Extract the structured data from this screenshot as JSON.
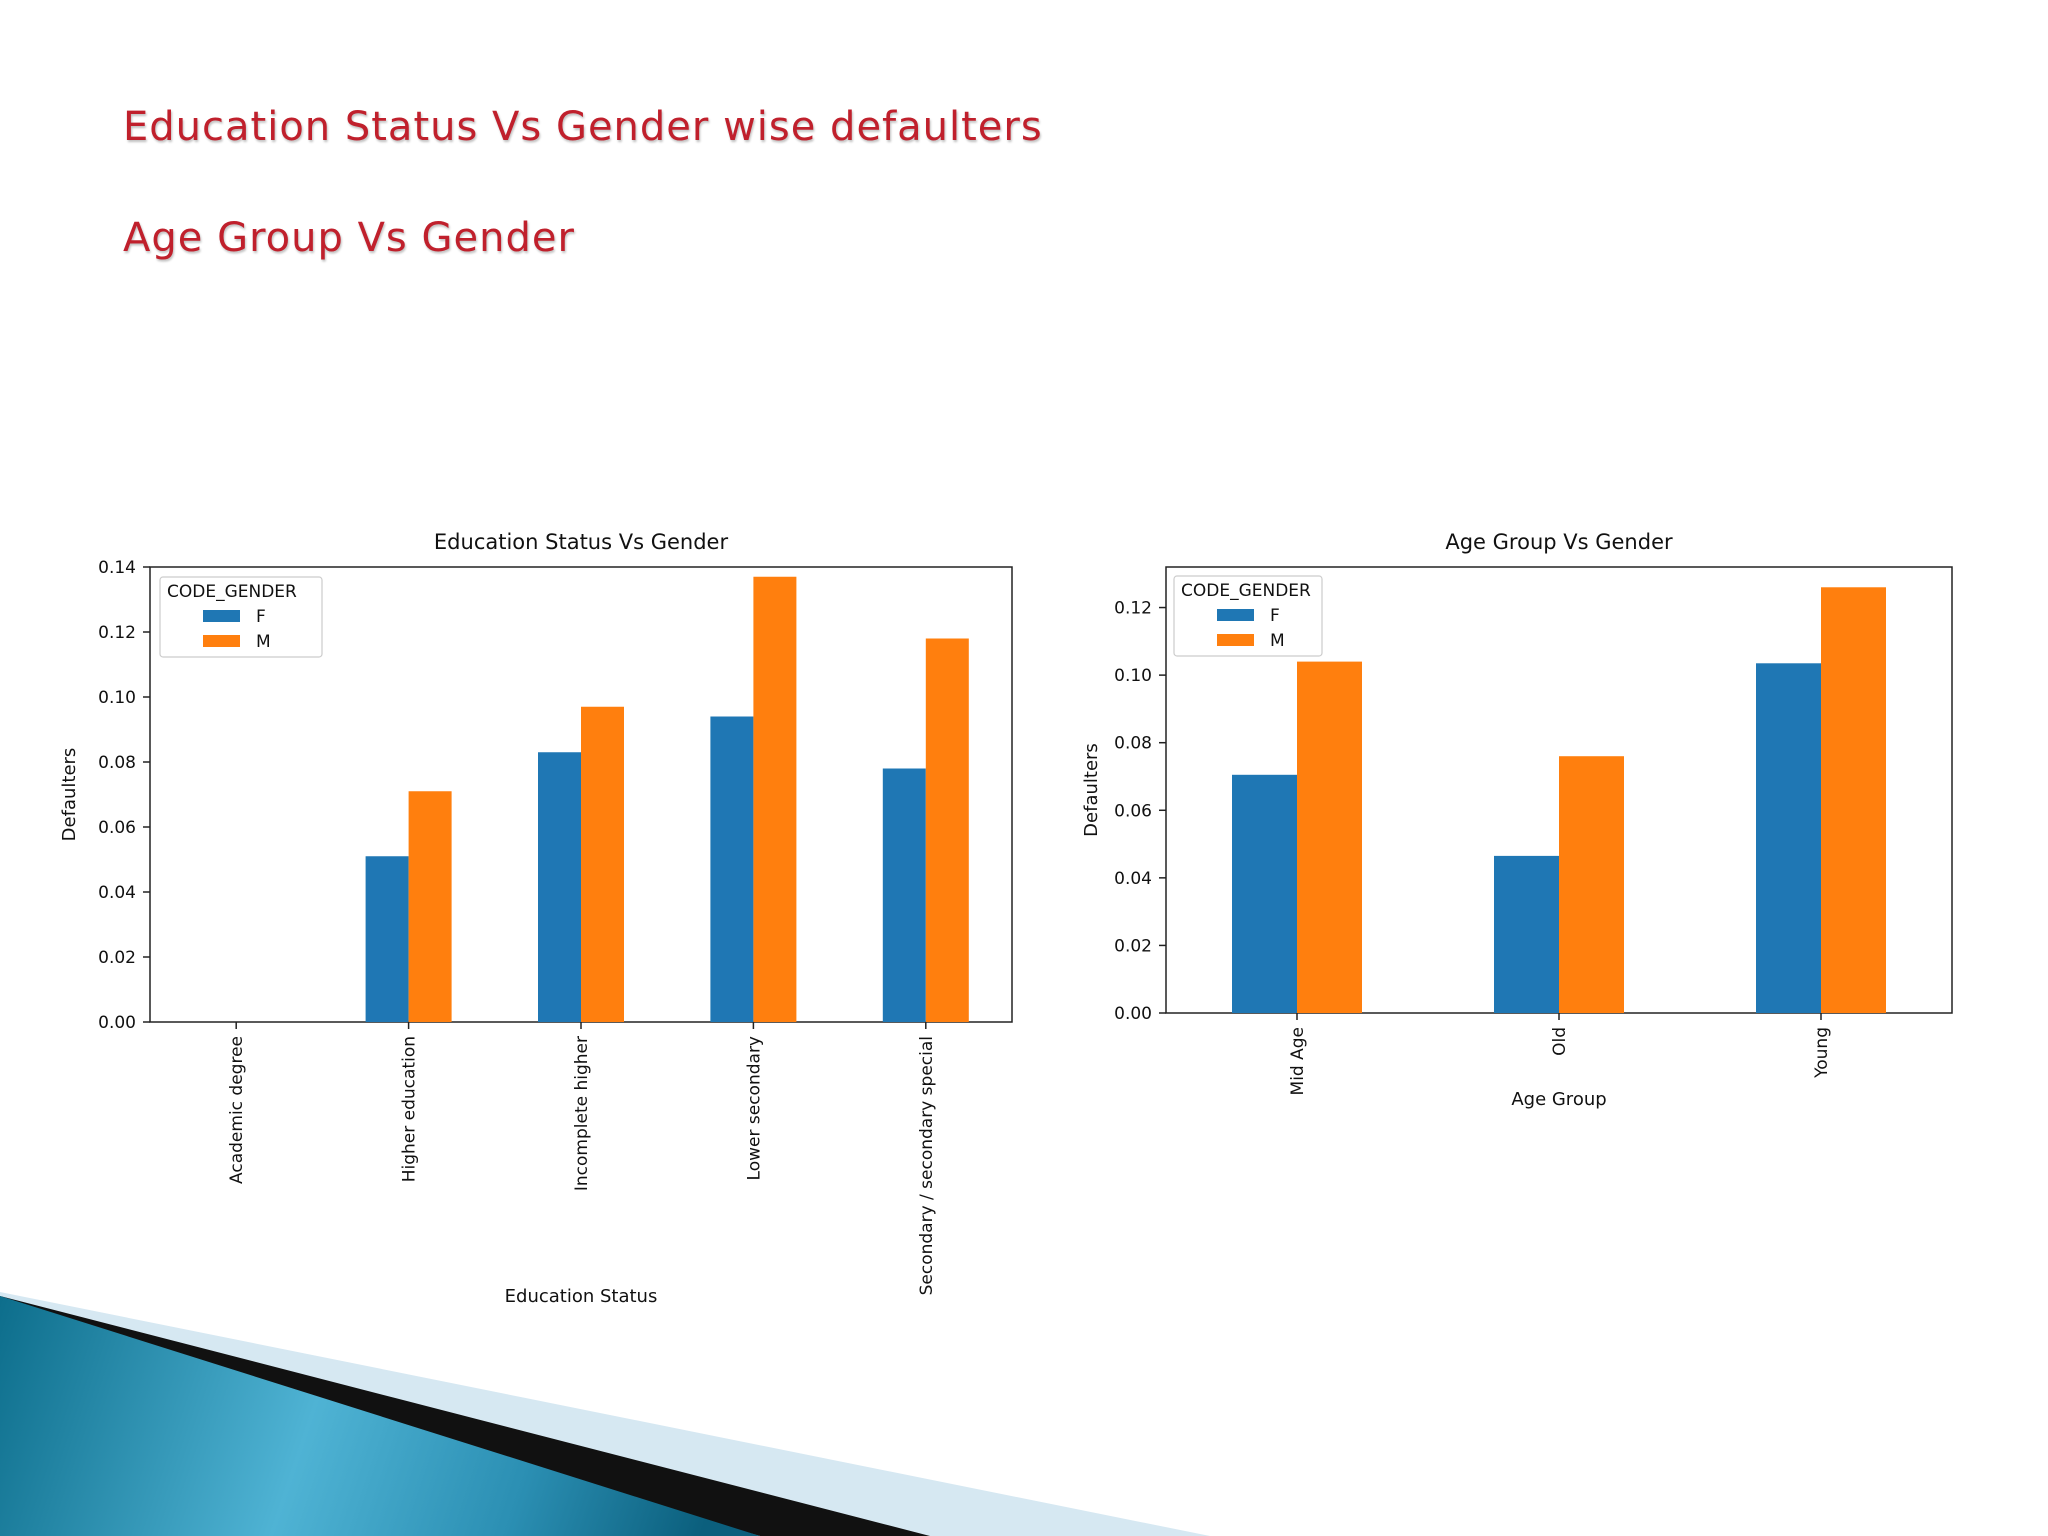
{
  "slide": {
    "heading_1": "Education Status Vs Gender wise defaulters",
    "heading_2": "Age Group Vs Gender"
  },
  "colors": {
    "F": "#1f77b4",
    "M": "#ff7f0e",
    "title": "#c0202c"
  },
  "chart_data": [
    {
      "type": "bar",
      "title": "Education Status Vs Gender",
      "xlabel": "Education Status",
      "ylabel": "Defaulters",
      "ylim": [
        0,
        0.14
      ],
      "yticks": [
        0.0,
        0.02,
        0.04,
        0.06,
        0.08,
        0.1,
        0.12,
        0.14
      ],
      "ytick_labels": [
        "0.00",
        "0.02",
        "0.04",
        "0.06",
        "0.08",
        "0.10",
        "0.12",
        "0.14"
      ],
      "categories": [
        "Academic degree",
        "Higher education",
        "Incomplete higher",
        "Lower secondary",
        "Secondary / secondary special"
      ],
      "legend_title": "CODE_GENDER",
      "legend_position": "top-left",
      "series": [
        {
          "name": "F",
          "values": [
            0.0,
            0.051,
            0.083,
            0.094,
            0.078
          ]
        },
        {
          "name": "M",
          "values": [
            0.0,
            0.071,
            0.097,
            0.137,
            0.118
          ]
        }
      ]
    },
    {
      "type": "bar",
      "title": "Age Group Vs Gender",
      "xlabel": "Age Group",
      "ylabel": "Defaulters",
      "ylim": [
        0,
        0.132
      ],
      "yticks": [
        0.0,
        0.02,
        0.04,
        0.06,
        0.08,
        0.1,
        0.12
      ],
      "ytick_labels": [
        "0.00",
        "0.02",
        "0.04",
        "0.06",
        "0.08",
        "0.10",
        "0.12"
      ],
      "categories": [
        "Mid Age",
        "Old",
        "Young"
      ],
      "legend_title": "CODE_GENDER",
      "legend_position": "top-left",
      "series": [
        {
          "name": "F",
          "values": [
            0.0705,
            0.0465,
            0.1035
          ]
        },
        {
          "name": "M",
          "values": [
            0.104,
            0.076,
            0.126
          ]
        }
      ]
    }
  ]
}
